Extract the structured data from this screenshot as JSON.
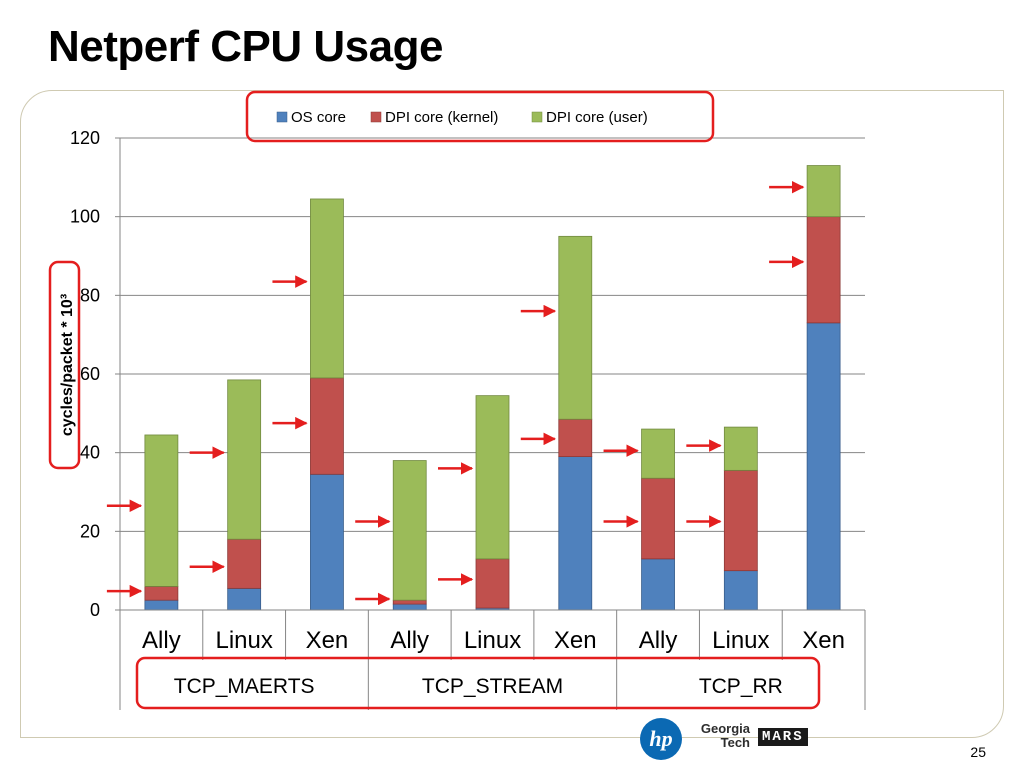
{
  "slide": {
    "title": "Netperf CPU Usage",
    "page_number": "25"
  },
  "logos": {
    "hp": "hp",
    "georgia_tech": "Georgia Tech",
    "mars": "MARS"
  },
  "colors": {
    "highlight": "#e41e1e",
    "os_core": "#4f81bd",
    "dpi_kernel": "#c0504d",
    "dpi_user": "#9bbb59",
    "grid": "#868686"
  },
  "chart_data": {
    "type": "bar",
    "stacked": true,
    "categories": [
      "Ally",
      "Linux",
      "Xen",
      "Ally",
      "Linux",
      "Xen",
      "Ally",
      "Linux",
      "Xen"
    ],
    "groups": [
      {
        "label": "TCP_MAERTS",
        "span": 3
      },
      {
        "label": "TCP_STREAM",
        "span": 3
      },
      {
        "label": "TCP_RR",
        "span": 3
      }
    ],
    "series": [
      {
        "name": "OS core",
        "color": "#4f81bd",
        "values": [
          2.5,
          5.5,
          34.5,
          1.5,
          0.5,
          39.0,
          13.0,
          10.0,
          73.0
        ]
      },
      {
        "name": "DPI core (kernel)",
        "color": "#c0504d",
        "values": [
          3.5,
          12.5,
          24.5,
          1.0,
          12.5,
          9.5,
          20.5,
          25.5,
          27.0
        ]
      },
      {
        "name": "DPI core (user)",
        "color": "#9bbb59",
        "values": [
          38.5,
          40.5,
          45.5,
          35.5,
          41.5,
          46.5,
          12.5,
          11.0,
          13.0
        ]
      }
    ],
    "ylabel": "cycles/packet * 10³",
    "xlabel": "",
    "ylim": [
      0,
      120
    ],
    "yticks": [
      0,
      20,
      40,
      60,
      80,
      100,
      120
    ],
    "grid": true,
    "legend_position": "top",
    "annotations": {
      "arrows_at": [
        {
          "category": 0,
          "y": 26.5
        },
        {
          "category": 0,
          "y": 4.8
        },
        {
          "category": 1,
          "y": 40.0
        },
        {
          "category": 1,
          "y": 11.0
        },
        {
          "category": 2,
          "y": 83.5
        },
        {
          "category": 2,
          "y": 47.5
        },
        {
          "category": 3,
          "y": 22.5
        },
        {
          "category": 3,
          "y": 2.8
        },
        {
          "category": 4,
          "y": 36.0
        },
        {
          "category": 4,
          "y": 7.8
        },
        {
          "category": 5,
          "y": 76.0
        },
        {
          "category": 5,
          "y": 43.5
        },
        {
          "category": 6,
          "y": 40.5
        },
        {
          "category": 6,
          "y": 22.5
        },
        {
          "category": 7,
          "y": 41.8
        },
        {
          "category": 7,
          "y": 22.5
        },
        {
          "category": 8,
          "y": 107.5
        },
        {
          "category": 8,
          "y": 88.5
        }
      ]
    }
  }
}
